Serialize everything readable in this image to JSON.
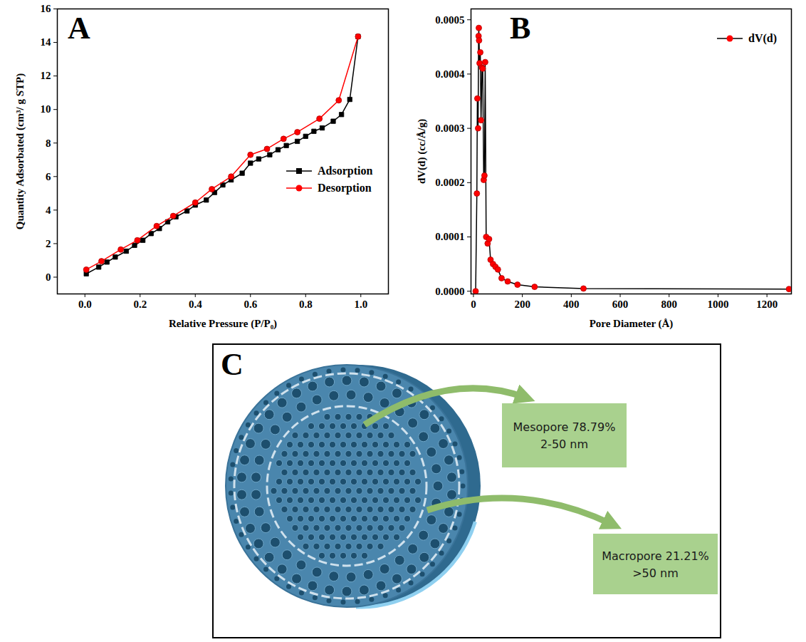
{
  "chart_data": [
    {
      "type": "line",
      "panel_label": "A",
      "xlabel": "Relative Pressure (P/P₀)",
      "ylabel": "Quantity Adsorbated (cm³/ g STP)",
      "xlim": [
        -0.1,
        1.1
      ],
      "xticks": [
        {
          "value": 0,
          "label": "0.0"
        },
        0.2,
        0.4,
        0.6,
        0.8,
        {
          "value": 1,
          "label": "1.0"
        }
      ],
      "ylim": [
        -1,
        16
      ],
      "yticks": [
        0,
        2,
        4,
        6,
        8,
        10,
        12,
        14,
        16
      ],
      "legend": "right",
      "series": [
        {
          "name": "Adsorption",
          "color": "#000000",
          "marker": "square",
          "x": [
            0.005,
            0.05,
            0.08,
            0.11,
            0.15,
            0.18,
            0.21,
            0.24,
            0.27,
            0.3,
            0.33,
            0.37,
            0.4,
            0.44,
            0.47,
            0.5,
            0.53,
            0.57,
            0.6,
            0.63,
            0.67,
            0.7,
            0.73,
            0.77,
            0.8,
            0.83,
            0.86,
            0.9,
            0.93,
            0.96,
            0.99
          ],
          "values": [
            0.2,
            0.6,
            0.9,
            1.2,
            1.55,
            1.9,
            2.2,
            2.6,
            2.9,
            3.3,
            3.6,
            3.95,
            4.3,
            4.6,
            5.05,
            5.5,
            5.8,
            6.2,
            6.8,
            7.05,
            7.3,
            7.6,
            7.85,
            8.1,
            8.4,
            8.7,
            8.9,
            9.3,
            9.7,
            10.6,
            14.35
          ]
        },
        {
          "name": "Desorption",
          "color": "#ff0000",
          "marker": "circle",
          "x": [
            0.005,
            0.06,
            0.13,
            0.19,
            0.26,
            0.32,
            0.4,
            0.46,
            0.53,
            0.6,
            0.66,
            0.72,
            0.77,
            0.85,
            0.92,
            0.99
          ],
          "values": [
            0.45,
            0.95,
            1.65,
            2.2,
            3.05,
            3.65,
            4.45,
            5.25,
            6.0,
            7.3,
            7.65,
            8.25,
            8.65,
            9.45,
            10.55,
            14.35
          ]
        }
      ]
    },
    {
      "type": "line",
      "panel_label": "B",
      "xlabel": "Pore Diameter (Å)",
      "ylabel": "dV(d) (cc/Å/g)",
      "color": "#000000",
      "xlim": [
        -10,
        1300
      ],
      "xticks": [
        0,
        200,
        400,
        600,
        800,
        1000,
        1200
      ],
      "ylim": [
        -5e-06,
        0.00052
      ],
      "yticks": [
        {
          "value": 0,
          "label": "0.0000"
        },
        0.0001,
        0.0002,
        0.0003,
        0.0004,
        0.0005
      ],
      "legend": "top-right",
      "x": [
        9,
        14,
        16,
        19,
        21,
        22,
        23,
        25,
        28,
        31,
        35,
        38,
        42,
        45,
        48,
        52,
        58,
        64,
        70,
        80,
        90,
        100,
        115,
        140,
        180,
        250,
        450,
        1290
      ],
      "series": [
        {
          "name": "dV(d)",
          "color": "#ff0000",
          "marker": "circle",
          "values": [
            0,
            0.00018,
            0.000355,
            0.0003,
            0.00047,
            0.000485,
            0.000462,
            0.00042,
            0.00044,
            0.000315,
            0.000412,
            0.00041,
            0.000205,
            0.000213,
            0.000422,
            0.0001,
            8.8e-05,
            9.6e-05,
            5.8e-05,
            5e-05,
            4.5e-05,
            4e-05,
            2.4e-05,
            1.8e-05,
            1.2e-05,
            8e-06,
            5e-06,
            4e-06
          ]
        }
      ]
    }
  ],
  "diagram": {
    "panel_label": "C",
    "callouts": [
      {
        "lines": [
          "Mesopore 78.79%",
          "2-50 nm"
        ]
      },
      {
        "lines": [
          "Macropore 21.21%",
          ">50 nm"
        ]
      }
    ]
  }
}
